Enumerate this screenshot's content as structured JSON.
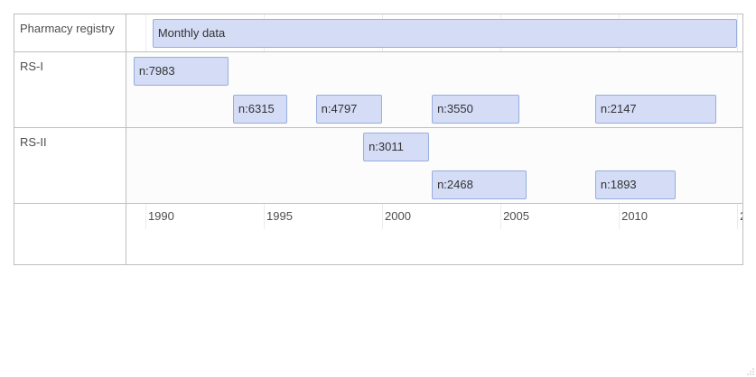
{
  "chart_data": {
    "type": "timeline",
    "x_axis": {
      "min": 1989.2,
      "max": 2015.3,
      "ticks": [
        "1990",
        "1995",
        "2000",
        "2005",
        "2010",
        "2"
      ]
    },
    "groups": [
      {
        "label": "Pharmacy registry",
        "rows": [
          [
            {
              "label": "Monthly data",
              "start": 1990.3,
              "end": 2015.0
            }
          ]
        ]
      },
      {
        "label": "RS-I",
        "rows": [
          [
            {
              "label": "n:7983",
              "start": 1989.5,
              "end": 1993.5
            }
          ],
          [
            {
              "label": "n:6315",
              "start": 1993.7,
              "end": 1996.0
            },
            {
              "label": "n:4797",
              "start": 1997.2,
              "end": 2000.0
            },
            {
              "label": "n:3550",
              "start": 2002.1,
              "end": 2005.8
            },
            {
              "label": "n:2147",
              "start": 2009.0,
              "end": 2014.1
            }
          ]
        ]
      },
      {
        "label": "RS-II",
        "rows": [
          [
            {
              "label": "n:3011",
              "start": 1999.2,
              "end": 2002.0
            }
          ],
          [
            {
              "label": "n:2468",
              "start": 2002.1,
              "end": 2006.1
            },
            {
              "label": "n:1893",
              "start": 2009.0,
              "end": 2012.4
            }
          ]
        ]
      }
    ]
  },
  "colors": {
    "bar_fill": "#d4dcf6",
    "bar_border": "#97aede",
    "grid": "#ececec",
    "frame": "#bfbfbf"
  }
}
